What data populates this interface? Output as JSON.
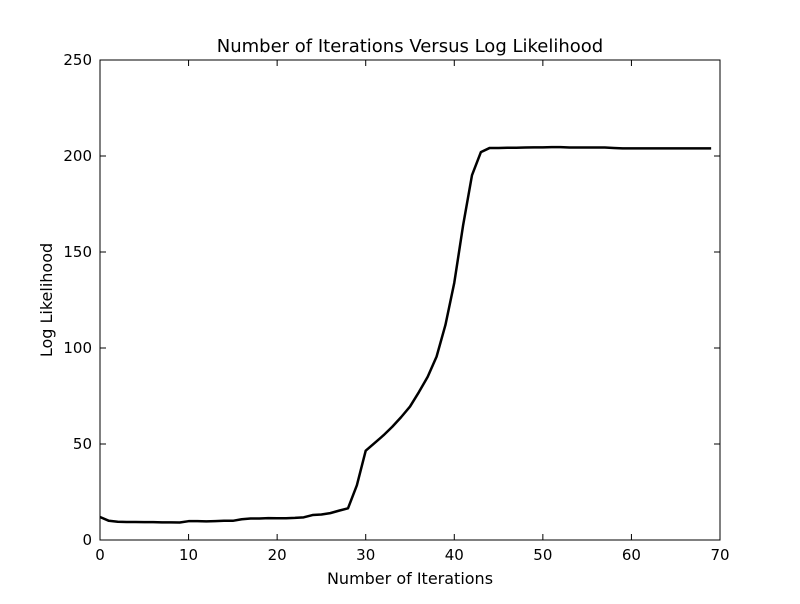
{
  "chart_data": {
    "type": "line",
    "title": "Number of Iterations Versus Log Likelihood",
    "xlabel": "Number of Iterations",
    "ylabel": "Log Likelihood",
    "xlim": [
      0,
      70
    ],
    "ylim": [
      0,
      250
    ],
    "xticks": [
      0,
      10,
      20,
      30,
      40,
      50,
      60,
      70
    ],
    "yticks": [
      0,
      50,
      100,
      150,
      200,
      250
    ],
    "grid": false,
    "line_color": "#000000",
    "series": [
      {
        "x": [
          0,
          1,
          2,
          3,
          4,
          5,
          6,
          7,
          8,
          9,
          10,
          11,
          12,
          13,
          14,
          15,
          16,
          17,
          18,
          19,
          20,
          21,
          22,
          23,
          24,
          25,
          26,
          27,
          28,
          29,
          30,
          31,
          32,
          33,
          34,
          35,
          36,
          37,
          38,
          39,
          40,
          41,
          42,
          43,
          44,
          45,
          46,
          47,
          48,
          49,
          50,
          51,
          52,
          53,
          54,
          55,
          56,
          57,
          58,
          59,
          60,
          61,
          62,
          63,
          64,
          65,
          66,
          67,
          68,
          69
        ],
        "y": [
          12,
          10,
          9.5,
          9.4,
          9.4,
          9.3,
          9.3,
          9.2,
          9.2,
          9.1,
          9.8,
          9.8,
          9.7,
          9.8,
          10,
          10,
          10.8,
          11.2,
          11.2,
          11.4,
          11.3,
          11.3,
          11.5,
          11.8,
          13,
          13.3,
          14,
          15.3,
          16.5,
          28.5,
          46.5,
          50.5,
          54.5,
          59,
          64,
          69.5,
          77,
          85,
          95.5,
          112,
          134,
          164,
          190,
          202,
          204.2,
          204.2,
          204.3,
          204.3,
          204.4,
          204.5,
          204.5,
          204.6,
          204.6,
          204.4,
          204.4,
          204.4,
          204.4,
          204.4,
          204.2,
          204.0,
          204.0,
          204.0,
          204.0,
          204.0,
          204.0,
          204.0,
          204.0,
          204.0,
          204.0,
          204.0
        ]
      }
    ]
  }
}
